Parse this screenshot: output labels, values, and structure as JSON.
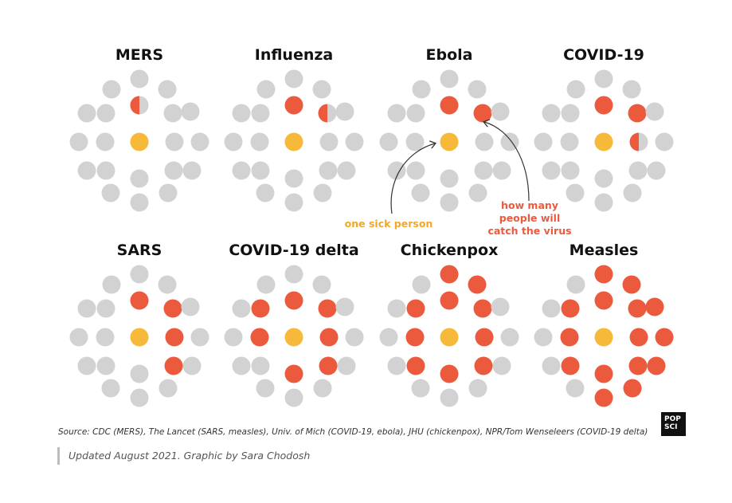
{
  "chart_data": {
    "type": "dot-matrix",
    "description_unit": "dots per disease: 1 center (one sick person) and up to 20 surrounding people",
    "colors": {
      "infected": "#ec5a3e",
      "source": "#f7b93a",
      "healthy": "#d2d2d2"
    },
    "diseases": [
      {
        "name": "MERS",
        "people_infected": 0.5
      },
      {
        "name": "Influenza",
        "people_infected": 1.5
      },
      {
        "name": "Ebola",
        "people_infected": 2
      },
      {
        "name": "COVID-19",
        "people_infected": 2.5
      },
      {
        "name": "SARS",
        "people_infected": 4
      },
      {
        "name": "COVID-19 delta",
        "people_infected": 7
      },
      {
        "name": "Chickenpox",
        "people_infected": 10
      },
      {
        "name": "Measles",
        "people_infected": 15
      }
    ],
    "annotations": {
      "source_label": "one sick person",
      "spread_label": [
        "how many",
        "people will",
        "catch the virus"
      ]
    }
  },
  "footer": {
    "source": "Source: CDC (MERS), The Lancet (SARS, measles), Univ. of Mich (COVID-19, ebola), JHU (chickenpox), NPR/Tom Wenseleers (COVID-19 delta)",
    "credit": "Updated August 2021. Graphic by Sara Chodosh",
    "logo_line1": "POP",
    "logo_line2": "SCI"
  }
}
